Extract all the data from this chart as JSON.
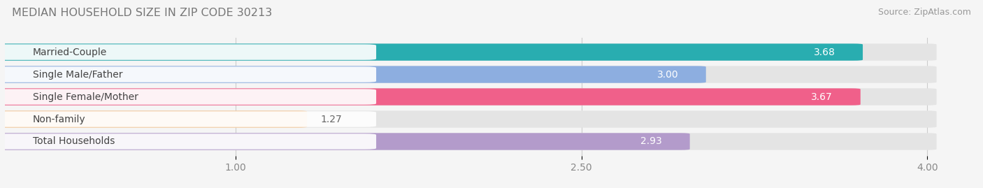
{
  "title": "MEDIAN HOUSEHOLD SIZE IN ZIP CODE 30213",
  "source": "Source: ZipAtlas.com",
  "categories": [
    "Married-Couple",
    "Single Male/Father",
    "Single Female/Mother",
    "Non-family",
    "Total Households"
  ],
  "values": [
    3.68,
    3.0,
    3.67,
    1.27,
    2.93
  ],
  "bar_colors": [
    "#29adb0",
    "#8daee0",
    "#f0608a",
    "#f5c898",
    "#b39bcb"
  ],
  "xlim_data": [
    0,
    4.22
  ],
  "xmin": 0,
  "xmax": 4.0,
  "xticks": [
    1.0,
    2.5,
    4.0
  ],
  "bar_height": 0.68,
  "bar_gap": 0.08,
  "background_color": "#f5f5f5",
  "bar_bg_color": "#e4e4e4",
  "title_fontsize": 11.5,
  "label_fontsize": 10,
  "value_fontsize": 10,
  "source_fontsize": 9,
  "title_color": "#777777",
  "source_color": "#999999",
  "label_color": "#444444",
  "value_color_inside": "#ffffff",
  "value_color_outside": "#666666"
}
